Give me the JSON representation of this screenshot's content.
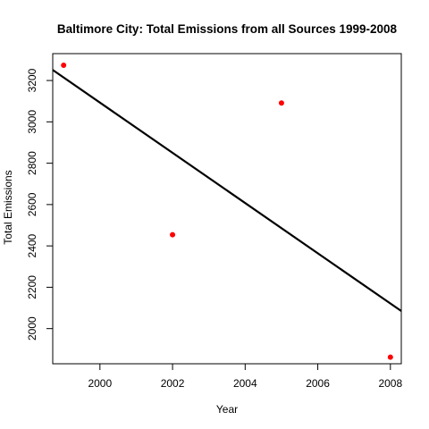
{
  "chart_data": {
    "type": "scatter",
    "title": "Baltimore City: Total Emissions from all Sources 1999-2008",
    "xlabel": "Year",
    "ylabel": "Total Emissions",
    "xlim": [
      1998.7,
      2008.3
    ],
    "ylim": [
      1830,
      3330
    ],
    "x_ticks": [
      2000,
      2002,
      2004,
      2006,
      2008
    ],
    "y_ticks": [
      2000,
      2200,
      2400,
      2600,
      2800,
      3000,
      3200
    ],
    "grid": false,
    "legend": "none",
    "point_color": "#ff0000",
    "line_color": "#000000",
    "points": [
      {
        "x": 1999,
        "y": 3274
      },
      {
        "x": 2002,
        "y": 2454
      },
      {
        "x": 2005,
        "y": 3091
      },
      {
        "x": 2008,
        "y": 1862
      }
    ],
    "trend_line": {
      "type": "linear_fit",
      "points": [
        {
          "x": 1998.7,
          "y": 3251
        },
        {
          "x": 2008.3,
          "y": 2085
        }
      ]
    }
  }
}
